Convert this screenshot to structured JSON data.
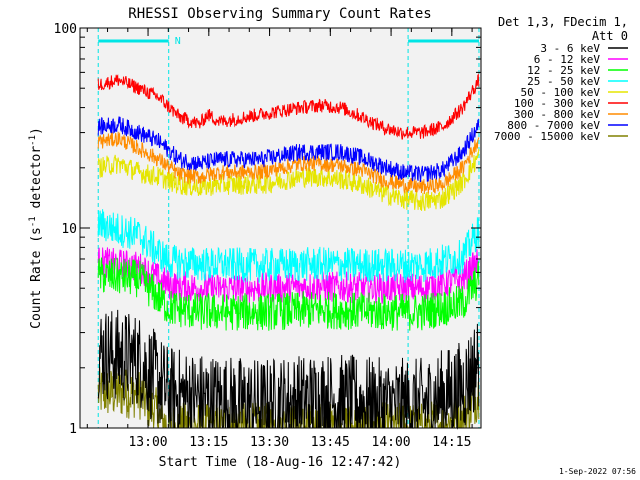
{
  "chart_data": {
    "type": "line",
    "title": "RHESSI Observing Summary Count Rates",
    "xlabel": "Start Time (18-Aug-16 12:47:42)",
    "ylabel_main": "Count Rate (s",
    "ylabel_sup1": "-1",
    "ylabel_mid": " detector",
    "ylabel_sup2": "-1",
    "ylabel_end": ")",
    "yscale": "log",
    "ylim": [
      1,
      100
    ],
    "xlim_minutes": [
      -4.5,
      94.5
    ],
    "x_ticks": [
      {
        "minute": 12.3,
        "label": "13:00"
      },
      {
        "minute": 27.3,
        "label": "13:15"
      },
      {
        "minute": 42.3,
        "label": "13:30"
      },
      {
        "minute": 57.3,
        "label": "13:45"
      },
      {
        "minute": 72.3,
        "label": "14:00"
      },
      {
        "minute": 87.3,
        "label": "14:15"
      }
    ],
    "y_ticks": [
      {
        "value": 1,
        "label": "1"
      },
      {
        "value": 10,
        "label": "10"
      },
      {
        "value": 100,
        "label": "100"
      }
    ],
    "legend_header": [
      "Det 1,3, FDecim 1,",
      "Att 0"
    ],
    "legend_placement": "right",
    "night_intervals_minutes": [
      [
        0,
        17.4
      ],
      [
        76.5,
        94.0
      ]
    ],
    "night_label": "N",
    "night_color": "#00e5e5",
    "timestamp": "1-Sep-2022 07:56",
    "axis_color": "#000000",
    "background": "#f2f2f2",
    "series": [
      {
        "name": "3 - 6 keV",
        "color": "#000000",
        "x": [
          0,
          10,
          17.4,
          25,
          40,
          55,
          70,
          80,
          90,
          94
        ],
        "y": [
          2.4,
          2.2,
          1.5,
          1.4,
          1.3,
          1.4,
          1.3,
          1.3,
          1.6,
          2.2
        ]
      },
      {
        "name": "6 - 12 keV",
        "color": "#ff00ff",
        "x": [
          0,
          10,
          17.4,
          25,
          40,
          55,
          70,
          80,
          90,
          94
        ],
        "y": [
          6.8,
          6.4,
          5.2,
          5.0,
          5.0,
          5.1,
          5.0,
          5.0,
          5.6,
          6.8
        ]
      },
      {
        "name": "12 - 25 keV",
        "color": "#00ff00",
        "x": [
          0,
          10,
          17.4,
          25,
          40,
          55,
          70,
          80,
          90,
          94
        ],
        "y": [
          5.8,
          5.6,
          4.0,
          3.8,
          3.8,
          3.9,
          3.8,
          3.8,
          4.2,
          5.6
        ]
      },
      {
        "name": "25 - 50 keV",
        "color": "#00ffff",
        "x": [
          0,
          10,
          17.4,
          25,
          40,
          55,
          70,
          80,
          90,
          94
        ],
        "y": [
          10.5,
          9.2,
          6.8,
          6.6,
          6.5,
          6.6,
          6.5,
          6.5,
          7.2,
          9.8
        ]
      },
      {
        "name": "50 - 100 keV",
        "color": "#e5e500",
        "x": [
          0,
          5,
          10,
          15,
          20,
          25,
          30,
          40,
          50,
          55,
          60,
          65,
          70,
          75,
          80,
          85,
          90,
          94
        ],
        "y": [
          20,
          21,
          19,
          18,
          16.5,
          16,
          16.5,
          16.5,
          18,
          18,
          17.5,
          16.5,
          15,
          14,
          13.5,
          14,
          17,
          23
        ]
      },
      {
        "name": "100 - 300 keV",
        "color": "#ff0000",
        "x": [
          0,
          5,
          10,
          15,
          20,
          25,
          27,
          30,
          40,
          50,
          55,
          60,
          65,
          70,
          75,
          80,
          85,
          90,
          94
        ],
        "y": [
          52,
          55,
          50,
          45,
          36,
          33,
          37,
          34,
          37,
          40,
          41,
          40,
          36,
          32,
          30,
          30,
          32,
          40,
          55
        ]
      },
      {
        "name": "300 - 800 keV",
        "color": "#ff8c00",
        "x": [
          0,
          5,
          10,
          15,
          20,
          25,
          30,
          40,
          50,
          55,
          60,
          65,
          70,
          75,
          80,
          85,
          90,
          94
        ],
        "y": [
          27,
          28,
          25,
          22,
          18.5,
          18,
          19,
          19,
          21,
          21,
          20.5,
          19.5,
          17.5,
          16.5,
          16,
          16.5,
          20,
          28
        ]
      },
      {
        "name": "800 - 7000 keV",
        "color": "#0000ff",
        "x": [
          0,
          5,
          10,
          15,
          20,
          25,
          30,
          40,
          50,
          55,
          60,
          65,
          70,
          75,
          80,
          85,
          90,
          94
        ],
        "y": [
          32,
          33,
          30,
          27,
          22,
          21,
          22,
          22,
          24,
          24,
          24,
          22.5,
          20.5,
          19,
          18.5,
          19.5,
          24,
          33
        ]
      },
      {
        "name": "7000 - 15000 keV",
        "color": "#808000",
        "x": [
          0,
          10,
          17.4,
          25,
          40,
          55,
          70,
          80,
          90,
          94
        ],
        "y": [
          1.5,
          1.5,
          1.0,
          1.0,
          1.0,
          1.0,
          1.0,
          1.0,
          1.1,
          1.5
        ]
      }
    ]
  }
}
